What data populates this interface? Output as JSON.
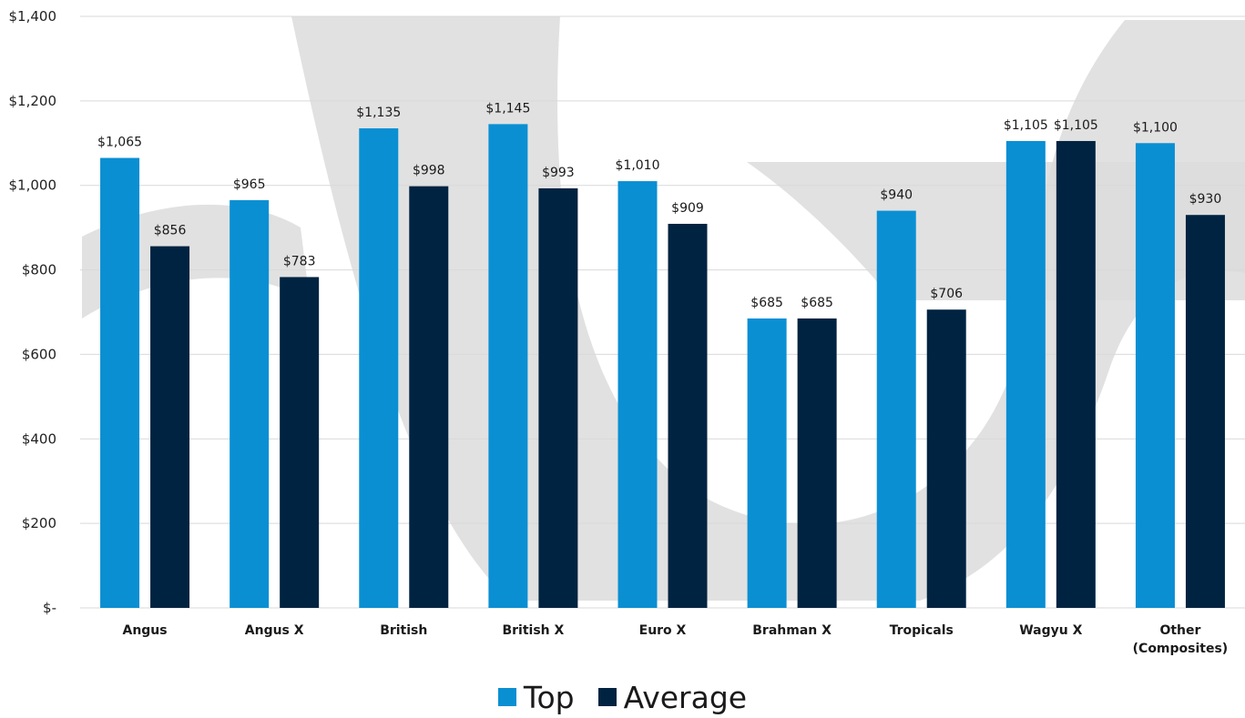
{
  "chart_data": {
    "type": "bar",
    "categories": [
      "Angus",
      "Angus X",
      "British",
      "British X",
      "Euro X",
      "Brahman X",
      "Tropicals",
      "Wagyu X",
      "Other\n(Composites)"
    ],
    "series": [
      {
        "name": "Top",
        "color": "#0A8FD3",
        "values": [
          1065,
          965,
          1135,
          1145,
          1010,
          685,
          940,
          1105,
          1100
        ],
        "labels": [
          "$1,065",
          "$965",
          "$1,135",
          "$1,145",
          "$1,010",
          "$685",
          "$940",
          "$1,105",
          "$1,100"
        ]
      },
      {
        "name": "Average",
        "color": "#002341",
        "values": [
          856,
          783,
          998,
          993,
          909,
          685,
          706,
          1105,
          930
        ],
        "labels": [
          "$856",
          "$783",
          "$998",
          "$993",
          "$909",
          "$685",
          "$706",
          "$1,105",
          "$930"
        ]
      }
    ],
    "ylim": [
      0,
      1400
    ],
    "yticks": [
      0,
      200,
      400,
      600,
      800,
      1000,
      1200,
      1400
    ],
    "ytick_labels": [
      "$-",
      "$200",
      "$400",
      "$600",
      "$800",
      "$1,000",
      "$1,200",
      "$1,400"
    ],
    "grid": true,
    "legend_position": "bottom-center",
    "watermark_color": "#dcdcdc"
  }
}
